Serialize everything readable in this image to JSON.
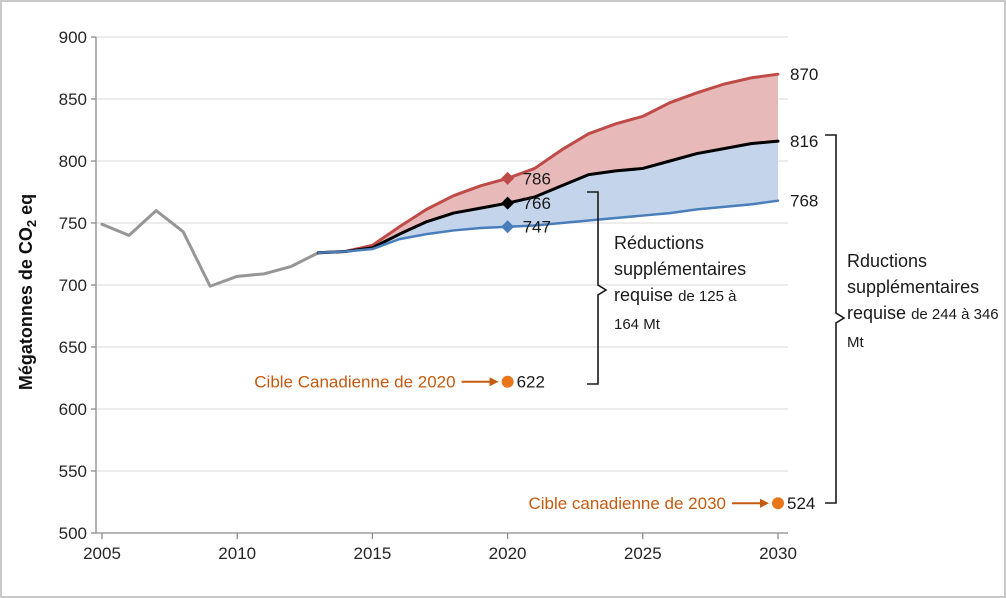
{
  "figure": {
    "y_axis_title": {
      "prefix": "Mégatonnes  de CO",
      "sub": "2",
      "suffix": " eq"
    }
  },
  "chart_data": {
    "type": "line",
    "title": "",
    "ylabel": "Mégatonnes de CO2 eq",
    "xlabel": "",
    "xlim": [
      2005,
      2030
    ],
    "ylim": [
      500,
      900
    ],
    "xticks": [
      2005,
      2010,
      2015,
      2020,
      2025,
      2030
    ],
    "yticks": [
      500,
      550,
      600,
      650,
      700,
      750,
      800,
      850,
      900
    ],
    "grid": true,
    "legend": "none",
    "series": [
      {
        "name": "emissions-historiques",
        "color": "#969696",
        "width": 3,
        "x": [
          2005,
          2006,
          2007,
          2008,
          2009,
          2010,
          2011,
          2012,
          2013
        ],
        "values": [
          749,
          740,
          760,
          743,
          699,
          707,
          709,
          715,
          726
        ]
      },
      {
        "name": "scenario-haut",
        "color": "#BE4B48",
        "width": 3,
        "x": [
          2013,
          2014,
          2015,
          2016,
          2017,
          2018,
          2019,
          2020,
          2021,
          2022,
          2023,
          2024,
          2025,
          2026,
          2027,
          2028,
          2029,
          2030
        ],
        "values": [
          726,
          727,
          732,
          747,
          761,
          772,
          780,
          786,
          794,
          809,
          822,
          830,
          836,
          847,
          855,
          862,
          867,
          870
        ],
        "marker": {
          "x": 2020,
          "value": 786,
          "label": "786",
          "shape": "diamond"
        },
        "end_label": "870"
      },
      {
        "name": "scenario-reference",
        "color": "#000000",
        "width": 3,
        "x": [
          2013,
          2014,
          2015,
          2016,
          2017,
          2018,
          2019,
          2020,
          2021,
          2022,
          2023,
          2024,
          2025,
          2026,
          2027,
          2028,
          2029,
          2030
        ],
        "values": [
          726,
          727,
          730,
          741,
          751,
          758,
          762,
          766,
          771,
          780,
          789,
          792,
          794,
          800,
          806,
          810,
          814,
          816
        ],
        "marker": {
          "x": 2020,
          "value": 766,
          "label": "766",
          "shape": "diamond"
        },
        "end_label": "816"
      },
      {
        "name": "scenario-bas",
        "color": "#4A7EBB",
        "width": 2.5,
        "x": [
          2013,
          2014,
          2015,
          2016,
          2017,
          2018,
          2019,
          2020,
          2021,
          2022,
          2023,
          2024,
          2025,
          2026,
          2027,
          2028,
          2029,
          2030
        ],
        "values": [
          726,
          727,
          729,
          737,
          741,
          744,
          746,
          747,
          748,
          750,
          752,
          754,
          756,
          758,
          761,
          763,
          765,
          768
        ],
        "marker": {
          "x": 2020,
          "value": 747,
          "label": "747",
          "shape": "diamond"
        },
        "end_label": "768"
      }
    ],
    "areas": [
      {
        "upper": "scenario-haut",
        "lower": "scenario-reference",
        "fill": "#E7B9B9"
      },
      {
        "upper": "scenario-reference",
        "lower": "scenario-bas",
        "fill": "#C4D4EA"
      }
    ],
    "targets": [
      {
        "name": "cible-2020",
        "label": "Cible Canadienne de 2020",
        "x": 2020,
        "value": 622,
        "value_label": "622",
        "dot_color": "#E8761B",
        "text_color": "#C55A11"
      },
      {
        "name": "cible-2030",
        "label": "Cible canadienne de 2030",
        "x": 2030,
        "value": 524,
        "value_label": "524",
        "dot_color": "#E8761B",
        "text_color": "#C55A11"
      }
    ],
    "annotations": [
      {
        "name": "reduction-2020",
        "text_main": "Réductions supplémentaires requise",
        "text_detail": "de 125 à 164 Mt"
      },
      {
        "name": "reduction-2030",
        "text_main": "Rductions supplémentaires requise",
        "text_detail": "de 244 à 346 Mt"
      }
    ]
  }
}
